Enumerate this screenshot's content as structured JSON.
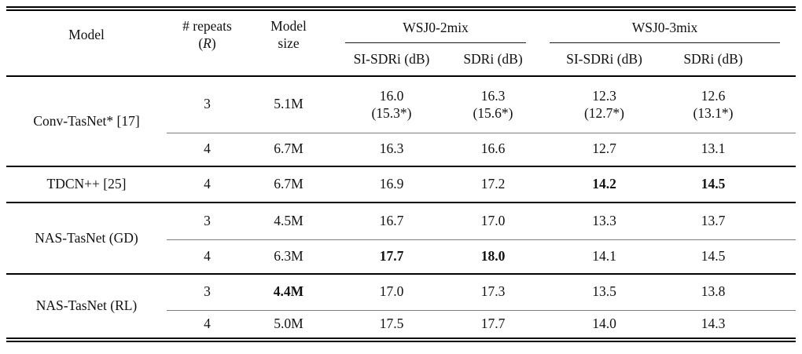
{
  "table": {
    "header": {
      "model": "Model",
      "repeats_line1": "# repeats",
      "repeats_open": "(",
      "repeats_symbol": "R",
      "repeats_close": ")",
      "size_line1": "Model",
      "size_line2": "size",
      "group_wsj0_2mix": "WSJ0-2mix",
      "group_wsj0_3mix": "WSJ0-3mix",
      "sub_si_sdri_2mix": "SI-SDRi (dB)",
      "sub_sdri_2mix": "SDRi (dB)",
      "sub_si_sdri_3mix": "SI-SDRi (dB)",
      "sub_sdri_3mix": "SDRi (dB)"
    },
    "rows": [
      {
        "model": "Conv-TasNet* [17]",
        "repeats": "3",
        "size": "5.1M",
        "si_sdri_2mix": "16.0",
        "si_sdri_2mix_note": "(15.3*)",
        "sdri_2mix": "16.3",
        "sdri_2mix_note": "(15.6*)",
        "si_sdri_3mix": "12.3",
        "si_sdri_3mix_note": "(12.7*)",
        "sdri_3mix": "12.6",
        "sdri_3mix_note": "(13.1*)"
      },
      {
        "repeats": "4",
        "size": "6.7M",
        "si_sdri_2mix": "16.3",
        "sdri_2mix": "16.6",
        "si_sdri_3mix": "12.7",
        "sdri_3mix": "13.1"
      },
      {
        "model": "TDCN++ [25]",
        "repeats": "4",
        "size": "6.7M",
        "si_sdri_2mix": "16.9",
        "sdri_2mix": "17.2",
        "si_sdri_3mix": "14.2",
        "sdri_3mix": "14.5"
      },
      {
        "model": "NAS-TasNet (GD)",
        "repeats": "3",
        "size": "4.5M",
        "si_sdri_2mix": "16.7",
        "sdri_2mix": "17.0",
        "si_sdri_3mix": "13.3",
        "sdri_3mix": "13.7"
      },
      {
        "repeats": "4",
        "size": "6.3M",
        "si_sdri_2mix": "17.7",
        "sdri_2mix": "18.0",
        "si_sdri_3mix": "14.1",
        "sdri_3mix": "14.5"
      },
      {
        "model": "NAS-TasNet (RL)",
        "repeats": "3",
        "size": "4.4M",
        "si_sdri_2mix": "17.0",
        "sdri_2mix": "17.3",
        "si_sdri_3mix": "13.5",
        "sdri_3mix": "13.8"
      },
      {
        "repeats": "4",
        "size": "5.0M",
        "si_sdri_2mix": "17.5",
        "sdri_2mix": "17.7",
        "si_sdri_3mix": "14.0",
        "sdri_3mix": "14.3"
      }
    ]
  }
}
